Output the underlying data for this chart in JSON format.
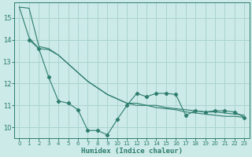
{
  "background_color": "#cceae7",
  "grid_color": "#aad4d0",
  "line_color": "#2e7d6e",
  "xlabel": "Humidex (Indice chaleur)",
  "xlim": [
    -0.5,
    23.5
  ],
  "ylim": [
    9.5,
    15.7
  ],
  "yticks": [
    10,
    11,
    12,
    13,
    14,
    15
  ],
  "xticks": [
    0,
    1,
    2,
    3,
    4,
    5,
    6,
    7,
    8,
    9,
    10,
    11,
    12,
    13,
    14,
    15,
    16,
    17,
    18,
    19,
    20,
    21,
    22,
    23
  ],
  "line1_x": [
    0,
    1,
    2,
    3,
    4,
    5,
    6,
    7,
    8,
    9,
    10,
    11,
    12,
    13,
    14,
    15,
    16,
    17,
    18,
    19,
    20,
    21,
    22,
    23
  ],
  "line1_y": [
    15.5,
    15.45,
    13.7,
    13.6,
    13.3,
    12.9,
    12.5,
    12.1,
    11.8,
    11.5,
    11.3,
    11.1,
    11.1,
    11.0,
    11.0,
    10.9,
    10.85,
    10.8,
    10.75,
    10.7,
    10.7,
    10.65,
    10.6,
    10.55
  ],
  "line2_x": [
    0,
    1,
    2,
    3,
    4,
    5,
    6,
    7,
    8,
    9,
    10,
    11,
    12,
    13,
    14,
    15,
    16,
    17,
    18,
    19,
    20,
    21,
    22,
    23
  ],
  "line2_y": [
    15.5,
    14.1,
    13.6,
    13.55,
    13.3,
    12.9,
    12.5,
    12.1,
    11.8,
    11.5,
    11.3,
    11.1,
    11.0,
    11.0,
    10.9,
    10.85,
    10.8,
    10.7,
    10.65,
    10.6,
    10.55,
    10.5,
    10.5,
    10.45
  ],
  "line3_x": [
    1,
    2,
    3,
    4,
    5,
    6,
    7,
    8,
    9,
    10,
    11,
    12,
    13,
    14,
    15,
    16,
    17,
    18,
    19,
    20,
    21,
    22,
    23
  ],
  "line3_y": [
    14.0,
    13.6,
    12.3,
    11.2,
    11.1,
    10.8,
    9.85,
    9.85,
    9.65,
    10.35,
    11.0,
    11.55,
    11.4,
    11.55,
    11.55,
    11.5,
    10.55,
    10.75,
    10.7,
    10.75,
    10.75,
    10.7,
    10.45
  ]
}
